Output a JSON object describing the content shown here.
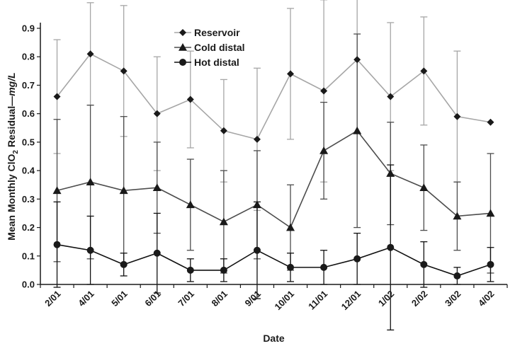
{
  "chart_data": {
    "type": "line",
    "title": "",
    "xlabel": "Date",
    "ylabel_parts": [
      "Mean Monthly ClO",
      "2",
      " Residual—",
      "mg/L"
    ],
    "categories": [
      "2/01",
      "4/01",
      "5/01",
      "6/01",
      "7/01",
      "8/01",
      "9/01",
      "10/01",
      "11/01",
      "12/01",
      "1/02",
      "2/02",
      "3/02",
      "4/02"
    ],
    "ylim": [
      0,
      0.9
    ],
    "yticks": [
      "0.0",
      "0.1",
      "0.2",
      "0.3",
      "0.4",
      "0.5",
      "0.6",
      "0.7",
      "0.8",
      "0.9"
    ],
    "grid": false,
    "legend_position": "top-center",
    "series": [
      {
        "name": "Reservoir",
        "marker": "diamond",
        "color": "#a6a6a6",
        "values": [
          0.66,
          0.81,
          0.75,
          0.6,
          0.65,
          0.54,
          0.51,
          0.74,
          0.68,
          0.79,
          0.66,
          0.75,
          0.59,
          0.57
        ],
        "upper": [
          0.86,
          0.99,
          0.98,
          0.8,
          0.82,
          0.72,
          0.76,
          0.97,
          1.0,
          1.05,
          0.92,
          0.94,
          0.82,
          null
        ],
        "lower": [
          0.46,
          0.63,
          0.52,
          0.4,
          0.48,
          0.36,
          0.26,
          0.51,
          0.36,
          0.53,
          0.4,
          0.56,
          0.36,
          null
        ]
      },
      {
        "name": "Cold distal",
        "marker": "triangle",
        "color": "#4d4d4d",
        "values": [
          0.33,
          0.36,
          0.33,
          0.34,
          0.28,
          0.22,
          0.28,
          0.2,
          0.47,
          0.54,
          0.39,
          0.34,
          0.24,
          0.25
        ],
        "upper": [
          0.58,
          0.63,
          0.59,
          0.5,
          0.44,
          0.4,
          0.47,
          0.35,
          0.64,
          0.88,
          0.57,
          0.49,
          0.36,
          0.46
        ],
        "lower": [
          0.08,
          0.09,
          0.07,
          0.18,
          0.12,
          0.04,
          0.09,
          0.05,
          0.3,
          0.2,
          0.21,
          0.19,
          0.12,
          0.04
        ]
      },
      {
        "name": "Hot distal",
        "marker": "circle",
        "color": "#111111",
        "values": [
          0.14,
          0.12,
          0.07,
          0.11,
          0.05,
          0.05,
          0.12,
          0.06,
          0.06,
          0.09,
          0.13,
          0.07,
          0.03,
          0.07
        ],
        "upper": [
          0.29,
          0.24,
          0.11,
          0.25,
          0.09,
          0.09,
          0.29,
          0.11,
          0.12,
          0.18,
          0.42,
          0.15,
          0.06,
          0.13
        ],
        "lower": [
          -0.01,
          0.0,
          0.03,
          -0.03,
          0.01,
          0.01,
          -0.05,
          0.01,
          0.0,
          0.0,
          -0.16,
          -0.01,
          0.0,
          0.01
        ]
      }
    ]
  }
}
